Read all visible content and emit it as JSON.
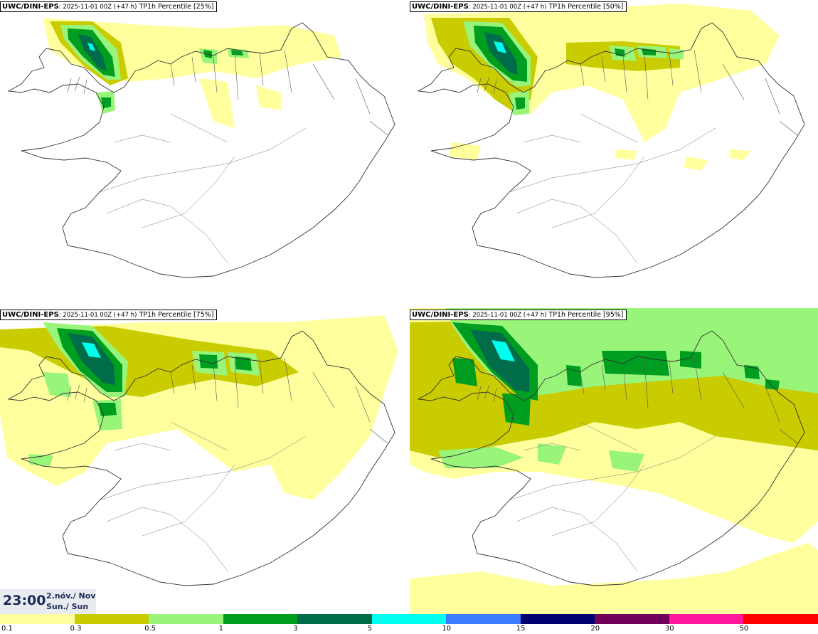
{
  "panels": [
    {
      "model": "UWC/DINI-EPS",
      "run": ": 2025-11-01 00Z (+47 h)",
      "label": "TP1h Percentile [25%]"
    },
    {
      "model": "UWC/DINI-EPS",
      "run": ": 2025-11-01 00Z (+47 h)",
      "label": "TP1h Percentile [50%]"
    },
    {
      "model": "UWC/DINI-EPS",
      "run": ": 2025-11-01 00Z (+47 h)",
      "label": "TP1h Percentile [75%]"
    },
    {
      "model": "UWC/DINI-EPS",
      "run": ": 2025-11-01 00Z (+47 h)",
      "label": "TP1h Percentile [95%]"
    }
  ],
  "time": {
    "clock": "23:00",
    "date_line": "2.nóv./ Nov",
    "day_line": "Sun./ Sun"
  },
  "colorbar": {
    "thresholds": [
      "0.1",
      "0.3",
      "0.5",
      "1",
      "3",
      "5",
      "10",
      "15",
      "20",
      "30",
      "50"
    ],
    "colors": [
      "#ffff9e",
      "#c8cc00",
      "#99f47a",
      "#009e20",
      "#006c4a",
      "#00ffee",
      "#3d7cff",
      "#000070",
      "#70005a",
      "#ff1899",
      "#ff0000"
    ]
  },
  "legend_colors": {
    "l1": "#ffff9e",
    "l2": "#c8cc00",
    "l3": "#99f47a",
    "l4": "#009e20",
    "l5": "#006c4a",
    "l6": "#00ffee"
  }
}
